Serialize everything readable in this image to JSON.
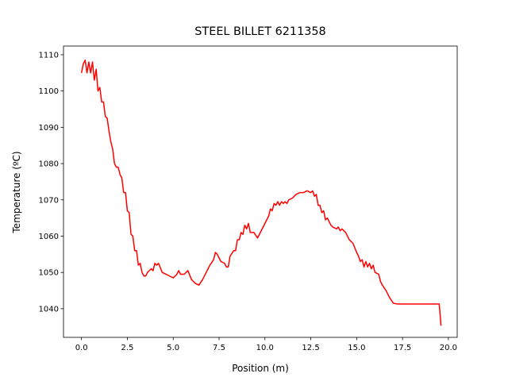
{
  "chart_data": {
    "type": "line",
    "title": "STEEL BILLET 6211358",
    "x_label": "Position (m)",
    "y_label": "Temperature (ºC)",
    "color": "#ff0000",
    "x": [
      0.0,
      0.1,
      0.2,
      0.3,
      0.4,
      0.5,
      0.6,
      0.7,
      0.8,
      0.9,
      1.0,
      1.1,
      1.2,
      1.3,
      1.4,
      1.5,
      1.6,
      1.7,
      1.8,
      1.9,
      2.0,
      2.1,
      2.2,
      2.3,
      2.4,
      2.5,
      2.6,
      2.7,
      2.8,
      2.9,
      3.0,
      3.1,
      3.2,
      3.3,
      3.4,
      3.5,
      3.6,
      3.8,
      3.9,
      4.0,
      4.1,
      4.2,
      4.4,
      4.6,
      4.8,
      5.0,
      5.2,
      5.3,
      5.4,
      5.6,
      5.8,
      6.0,
      6.2,
      6.4,
      6.6,
      6.8,
      7.0,
      7.2,
      7.3,
      7.4,
      7.6,
      7.8,
      7.9,
      8.0,
      8.1,
      8.3,
      8.4,
      8.5,
      8.6,
      8.7,
      8.8,
      8.9,
      9.0,
      9.1,
      9.2,
      9.4,
      9.6,
      9.8,
      10.0,
      10.2,
      10.3,
      10.4,
      10.5,
      10.6,
      10.7,
      10.8,
      10.9,
      11.0,
      11.1,
      11.2,
      11.3,
      11.5,
      11.7,
      11.9,
      12.1,
      12.3,
      12.5,
      12.6,
      12.7,
      12.8,
      12.9,
      13.0,
      13.1,
      13.2,
      13.3,
      13.4,
      13.6,
      13.7,
      13.9,
      14.0,
      14.1,
      14.2,
      14.4,
      14.6,
      14.8,
      15.0,
      15.1,
      15.2,
      15.3,
      15.4,
      15.5,
      15.6,
      15.7,
      15.8,
      15.9,
      16.0,
      16.2,
      16.3,
      16.4,
      16.6,
      16.8,
      17.0,
      17.2,
      19.5,
      19.6
    ],
    "values": [
      1105,
      1107.5,
      1108.5,
      1105,
      1108,
      1105,
      1108,
      1103,
      1106,
      1100,
      1101,
      1097,
      1097,
      1093,
      1092.5,
      1089,
      1086,
      1084,
      1080,
      1079,
      1079,
      1077,
      1076,
      1072,
      1072,
      1067,
      1066.5,
      1060.5,
      1060,
      1056,
      1056,
      1052,
      1052.5,
      1050,
      1049,
      1049,
      1050,
      1051,
      1050.5,
      1052.5,
      1052,
      1052.5,
      1050,
      1049.5,
      1049,
      1048.5,
      1049.5,
      1050.5,
      1049.5,
      1049.5,
      1050.5,
      1048,
      1047,
      1046.5,
      1048,
      1050,
      1052,
      1053.5,
      1055.5,
      1055,
      1053,
      1052.5,
      1051.5,
      1051.5,
      1054.5,
      1056,
      1056,
      1059,
      1059,
      1061,
      1060.5,
      1063,
      1062,
      1063.5,
      1061,
      1061,
      1059.5,
      1061.5,
      1063.5,
      1065.5,
      1067.5,
      1067,
      1069,
      1068.5,
      1069.5,
      1068.5,
      1069.5,
      1069,
      1069.5,
      1069,
      1070,
      1070.5,
      1071.5,
      1072,
      1072,
      1072.5,
      1072,
      1072.5,
      1071,
      1071.5,
      1068.5,
      1068.5,
      1066.5,
      1067,
      1064.5,
      1065,
      1063,
      1062.5,
      1062,
      1062.5,
      1061.5,
      1062,
      1061,
      1059,
      1058,
      1055.5,
      1054.5,
      1053,
      1053.5,
      1051.5,
      1053,
      1051.5,
      1052.5,
      1051,
      1052,
      1050,
      1049.5,
      1047.5,
      1046.5,
      1045,
      1043,
      1041.5,
      1041.3,
      1041.3,
      1035.3
    ],
    "xlim": [
      -0.98,
      20.48
    ],
    "ylim": [
      1032.1,
      1112.4
    ],
    "xticks": [
      {
        "value": 0,
        "label": "0.0"
      },
      {
        "value": 2.5,
        "label": "2.5"
      },
      {
        "value": 5,
        "label": "5.0"
      },
      {
        "value": 7.5,
        "label": "7.5"
      },
      {
        "value": 10,
        "label": "10.0"
      },
      {
        "value": 12.5,
        "label": "12.5"
      },
      {
        "value": 15,
        "label": "15.0"
      },
      {
        "value": 17.5,
        "label": "17.5"
      },
      {
        "value": 20,
        "label": "20.0"
      }
    ],
    "yticks": [
      1040,
      1050,
      1060,
      1070,
      1080,
      1090,
      1100,
      1110
    ]
  }
}
